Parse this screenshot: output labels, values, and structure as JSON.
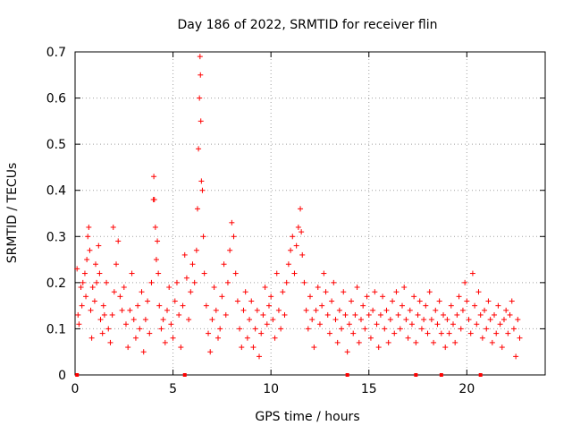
{
  "chart_data": {
    "type": "scatter",
    "title": "Day 186 of 2022, SRMTID for receiver flin",
    "xlabel": "GPS time / hours",
    "ylabel": "SRMTID / TECUs",
    "xlim": [
      0,
      24
    ],
    "ylim": [
      0,
      0.7
    ],
    "x_ticks": [
      0,
      5,
      10,
      15,
      20
    ],
    "x_tick_labels": [
      "0",
      "5",
      "10",
      "15",
      "20"
    ],
    "y_ticks": [
      0,
      0.1,
      0.2,
      0.3,
      0.4,
      0.5,
      0.6,
      0.7
    ],
    "y_tick_labels": [
      "0",
      "0.1",
      "0.2",
      "0.3",
      "0.4",
      "0.5",
      "0.6",
      "0.7"
    ],
    "grid": true,
    "marker": "plus",
    "series": [
      {
        "name": "SRMTID",
        "color": "#ff0000",
        "points": [
          [
            0.1,
            0.23
          ],
          [
            0.15,
            0.13
          ],
          [
            0.2,
            0.11
          ],
          [
            0.3,
            0.19
          ],
          [
            0.35,
            0.15
          ],
          [
            0.4,
            0.2
          ],
          [
            0.5,
            0.22
          ],
          [
            0.55,
            0.17
          ],
          [
            0.6,
            0.25
          ],
          [
            0.65,
            0.3
          ],
          [
            0.7,
            0.32
          ],
          [
            0.75,
            0.27
          ],
          [
            0.8,
            0.14
          ],
          [
            0.85,
            0.08
          ],
          [
            0.9,
            0.19
          ],
          [
            1.0,
            0.16
          ],
          [
            1.05,
            0.24
          ],
          [
            1.1,
            0.2
          ],
          [
            1.2,
            0.28
          ],
          [
            1.25,
            0.22
          ],
          [
            1.3,
            0.12
          ],
          [
            1.4,
            0.09
          ],
          [
            1.45,
            0.15
          ],
          [
            1.5,
            0.13
          ],
          [
            1.6,
            0.2
          ],
          [
            1.7,
            0.1
          ],
          [
            1.8,
            0.07
          ],
          [
            1.9,
            0.13
          ],
          [
            1.95,
            0.32
          ],
          [
            2.0,
            0.18
          ],
          [
            2.1,
            0.24
          ],
          [
            2.2,
            0.29
          ],
          [
            2.3,
            0.17
          ],
          [
            2.4,
            0.14
          ],
          [
            2.5,
            0.19
          ],
          [
            2.6,
            0.11
          ],
          [
            2.7,
            0.06
          ],
          [
            2.8,
            0.14
          ],
          [
            2.9,
            0.22
          ],
          [
            3.0,
            0.12
          ],
          [
            3.1,
            0.08
          ],
          [
            3.2,
            0.15
          ],
          [
            3.3,
            0.1
          ],
          [
            3.4,
            0.18
          ],
          [
            3.5,
            0.05
          ],
          [
            3.6,
            0.12
          ],
          [
            3.7,
            0.16
          ],
          [
            3.8,
            0.09
          ],
          [
            3.9,
            0.2
          ],
          [
            4.0,
            0.38
          ],
          [
            4.02,
            0.43
          ],
          [
            4.05,
            0.38
          ],
          [
            4.1,
            0.32
          ],
          [
            4.15,
            0.25
          ],
          [
            4.2,
            0.29
          ],
          [
            4.25,
            0.22
          ],
          [
            4.3,
            0.15
          ],
          [
            4.4,
            0.1
          ],
          [
            4.5,
            0.12
          ],
          [
            4.6,
            0.07
          ],
          [
            4.7,
            0.14
          ],
          [
            4.8,
            0.19
          ],
          [
            4.9,
            0.11
          ],
          [
            5.0,
            0.08
          ],
          [
            5.1,
            0.16
          ],
          [
            5.2,
            0.2
          ],
          [
            5.3,
            0.13
          ],
          [
            5.4,
            0.06
          ],
          [
            5.5,
            0.15
          ],
          [
            5.6,
            0.26
          ],
          [
            5.7,
            0.21
          ],
          [
            5.8,
            0.12
          ],
          [
            5.9,
            0.18
          ],
          [
            6.0,
            0.24
          ],
          [
            6.1,
            0.2
          ],
          [
            6.2,
            0.27
          ],
          [
            6.25,
            0.36
          ],
          [
            6.3,
            0.49
          ],
          [
            6.35,
            0.6
          ],
          [
            6.38,
            0.69
          ],
          [
            6.4,
            0.65
          ],
          [
            6.42,
            0.55
          ],
          [
            6.45,
            0.42
          ],
          [
            6.5,
            0.4
          ],
          [
            6.55,
            0.3
          ],
          [
            6.6,
            0.22
          ],
          [
            6.7,
            0.15
          ],
          [
            6.8,
            0.09
          ],
          [
            6.9,
            0.05
          ],
          [
            7.0,
            0.12
          ],
          [
            7.1,
            0.19
          ],
          [
            7.2,
            0.14
          ],
          [
            7.3,
            0.08
          ],
          [
            7.4,
            0.1
          ],
          [
            7.5,
            0.17
          ],
          [
            7.6,
            0.24
          ],
          [
            7.7,
            0.13
          ],
          [
            7.8,
            0.2
          ],
          [
            7.9,
            0.27
          ],
          [
            8.0,
            0.33
          ],
          [
            8.1,
            0.3
          ],
          [
            8.2,
            0.22
          ],
          [
            8.3,
            0.16
          ],
          [
            8.4,
            0.1
          ],
          [
            8.5,
            0.06
          ],
          [
            8.6,
            0.14
          ],
          [
            8.7,
            0.18
          ],
          [
            8.8,
            0.08
          ],
          [
            8.9,
            0.12
          ],
          [
            9.0,
            0.16
          ],
          [
            9.1,
            0.06
          ],
          [
            9.2,
            0.1
          ],
          [
            9.3,
            0.14
          ],
          [
            9.4,
            0.04
          ],
          [
            9.5,
            0.09
          ],
          [
            9.6,
            0.13
          ],
          [
            9.7,
            0.19
          ],
          [
            9.8,
            0.11
          ],
          [
            9.9,
            0.15
          ],
          [
            10.0,
            0.17
          ],
          [
            10.1,
            0.12
          ],
          [
            10.2,
            0.08
          ],
          [
            10.3,
            0.22
          ],
          [
            10.4,
            0.14
          ],
          [
            10.5,
            0.1
          ],
          [
            10.6,
            0.18
          ],
          [
            10.7,
            0.13
          ],
          [
            10.8,
            0.2
          ],
          [
            10.9,
            0.24
          ],
          [
            11.0,
            0.27
          ],
          [
            11.1,
            0.3
          ],
          [
            11.2,
            0.22
          ],
          [
            11.3,
            0.28
          ],
          [
            11.4,
            0.32
          ],
          [
            11.5,
            0.36
          ],
          [
            11.55,
            0.31
          ],
          [
            11.6,
            0.26
          ],
          [
            11.7,
            0.2
          ],
          [
            11.8,
            0.14
          ],
          [
            11.9,
            0.1
          ],
          [
            12.0,
            0.17
          ],
          [
            12.1,
            0.12
          ],
          [
            12.2,
            0.06
          ],
          [
            12.3,
            0.14
          ],
          [
            12.4,
            0.19
          ],
          [
            12.5,
            0.11
          ],
          [
            12.6,
            0.15
          ],
          [
            12.7,
            0.22
          ],
          [
            12.8,
            0.18
          ],
          [
            12.9,
            0.13
          ],
          [
            13.0,
            0.09
          ],
          [
            13.1,
            0.16
          ],
          [
            13.2,
            0.2
          ],
          [
            13.3,
            0.12
          ],
          [
            13.4,
            0.07
          ],
          [
            13.5,
            0.14
          ],
          [
            13.6,
            0.1
          ],
          [
            13.7,
            0.18
          ],
          [
            13.8,
            0.13
          ],
          [
            13.9,
            0.05
          ],
          [
            14.0,
            0.11
          ],
          [
            14.1,
            0.16
          ],
          [
            14.2,
            0.09
          ],
          [
            14.3,
            0.13
          ],
          [
            14.4,
            0.19
          ],
          [
            14.5,
            0.07
          ],
          [
            14.6,
            0.12
          ],
          [
            14.7,
            0.15
          ],
          [
            14.8,
            0.1
          ],
          [
            14.9,
            0.17
          ],
          [
            15.0,
            0.13
          ],
          [
            15.1,
            0.08
          ],
          [
            15.2,
            0.14
          ],
          [
            15.3,
            0.18
          ],
          [
            15.4,
            0.11
          ],
          [
            15.5,
            0.06
          ],
          [
            15.6,
            0.13
          ],
          [
            15.7,
            0.17
          ],
          [
            15.8,
            0.1
          ],
          [
            15.9,
            0.14
          ],
          [
            16.0,
            0.07
          ],
          [
            16.1,
            0.12
          ],
          [
            16.2,
            0.16
          ],
          [
            16.3,
            0.09
          ],
          [
            16.4,
            0.18
          ],
          [
            16.5,
            0.13
          ],
          [
            16.6,
            0.1
          ],
          [
            16.7,
            0.15
          ],
          [
            16.8,
            0.19
          ],
          [
            16.9,
            0.12
          ],
          [
            17.0,
            0.08
          ],
          [
            17.1,
            0.14
          ],
          [
            17.2,
            0.11
          ],
          [
            17.3,
            0.17
          ],
          [
            17.4,
            0.07
          ],
          [
            17.5,
            0.13
          ],
          [
            17.6,
            0.16
          ],
          [
            17.7,
            0.1
          ],
          [
            17.8,
            0.12
          ],
          [
            17.9,
            0.15
          ],
          [
            18.0,
            0.09
          ],
          [
            18.1,
            0.18
          ],
          [
            18.2,
            0.12
          ],
          [
            18.3,
            0.07
          ],
          [
            18.4,
            0.14
          ],
          [
            18.5,
            0.11
          ],
          [
            18.6,
            0.16
          ],
          [
            18.7,
            0.09
          ],
          [
            18.8,
            0.13
          ],
          [
            18.9,
            0.06
          ],
          [
            19.0,
            0.12
          ],
          [
            19.1,
            0.09
          ],
          [
            19.2,
            0.15
          ],
          [
            19.3,
            0.11
          ],
          [
            19.4,
            0.07
          ],
          [
            19.5,
            0.13
          ],
          [
            19.6,
            0.17
          ],
          [
            19.7,
            0.1
          ],
          [
            19.8,
            0.14
          ],
          [
            19.9,
            0.2
          ],
          [
            20.0,
            0.16
          ],
          [
            20.1,
            0.12
          ],
          [
            20.2,
            0.09
          ],
          [
            20.3,
            0.22
          ],
          [
            20.4,
            0.15
          ],
          [
            20.5,
            0.11
          ],
          [
            20.6,
            0.18
          ],
          [
            20.7,
            0.13
          ],
          [
            20.8,
            0.08
          ],
          [
            20.9,
            0.14
          ],
          [
            21.0,
            0.1
          ],
          [
            21.1,
            0.16
          ],
          [
            21.2,
            0.12
          ],
          [
            21.3,
            0.07
          ],
          [
            21.4,
            0.13
          ],
          [
            21.5,
            0.09
          ],
          [
            21.6,
            0.15
          ],
          [
            21.7,
            0.11
          ],
          [
            21.8,
            0.06
          ],
          [
            21.9,
            0.12
          ],
          [
            22.0,
            0.14
          ],
          [
            22.1,
            0.09
          ],
          [
            22.2,
            0.13
          ],
          [
            22.3,
            0.16
          ],
          [
            22.4,
            0.1
          ],
          [
            22.5,
            0.04
          ],
          [
            22.6,
            0.12
          ],
          [
            22.7,
            0.08
          ]
        ]
      }
    ],
    "zero_markers_x": [
      0.1,
      5.6,
      13.9,
      17.4,
      18.7,
      20.7
    ]
  }
}
